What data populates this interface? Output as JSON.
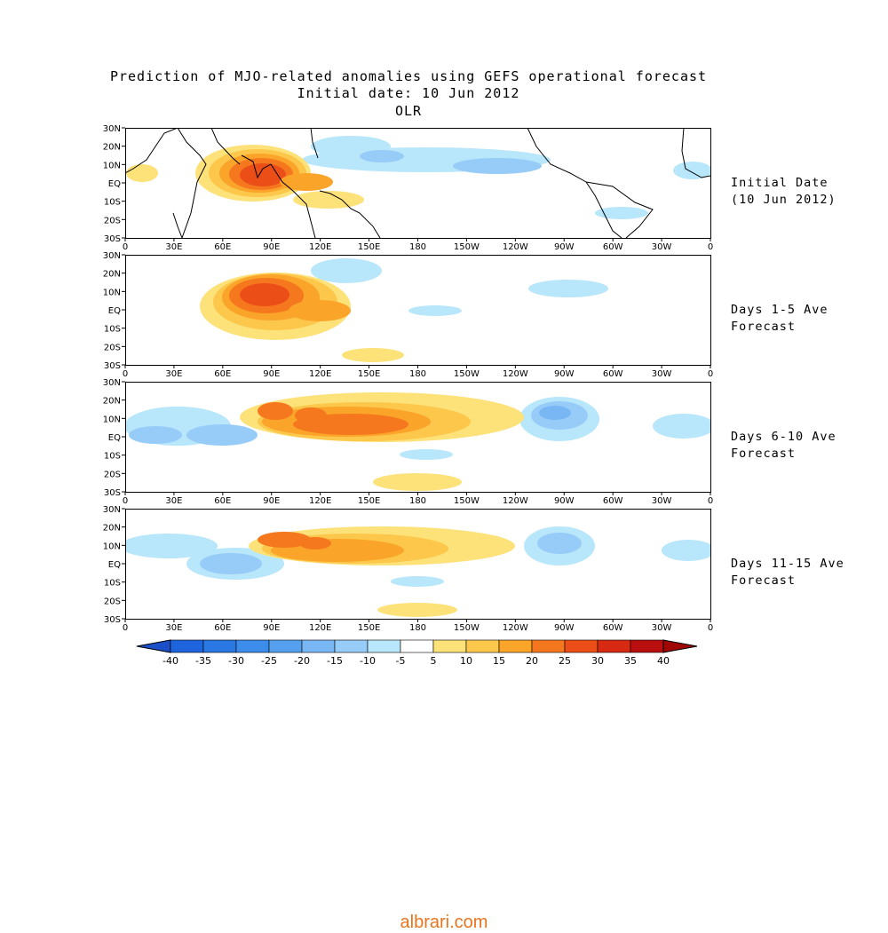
{
  "title": {
    "line1": "Prediction of MJO-related anomalies using GEFS operational forecast",
    "line2": "Initial date: 10 Jun 2012",
    "line3": "OLR"
  },
  "axes": {
    "lat_ticks": [
      "30N",
      "20N",
      "10N",
      "EQ",
      "10S",
      "20S",
      "30S"
    ],
    "lon_ticks": [
      "0",
      "30E",
      "60E",
      "90E",
      "120E",
      "150E",
      "180",
      "150W",
      "120W",
      "90W",
      "60W",
      "30W",
      "0"
    ]
  },
  "panels": [
    {
      "label1": "Initial Date",
      "label2": "(10 Jun 2012)"
    },
    {
      "label1": "Days 1-5 Ave",
      "label2": "Forecast"
    },
    {
      "label1": "Days 6-10 Ave",
      "label2": "Forecast"
    },
    {
      "label1": "Days 11-15 Ave",
      "label2": "Forecast"
    }
  ],
  "colorbar": {
    "labels": [
      "-40",
      "-35",
      "-30",
      "-25",
      "-20",
      "-15",
      "-10",
      "-5",
      "5",
      "10",
      "15",
      "20",
      "25",
      "30",
      "35",
      "40"
    ],
    "colors": [
      "#1e64dc",
      "#2a78e4",
      "#3c8cec",
      "#56a0f0",
      "#78b6f4",
      "#98ccf8",
      "#b8e6fa",
      "#ffffff",
      "#fde27a",
      "#fcc74a",
      "#faa42a",
      "#f6781e",
      "#ec4e18",
      "#d82a12",
      "#b80e0e"
    ],
    "under_color": "#1a4fc8",
    "over_color": "#a00808"
  },
  "watermark": "albrari.com"
}
